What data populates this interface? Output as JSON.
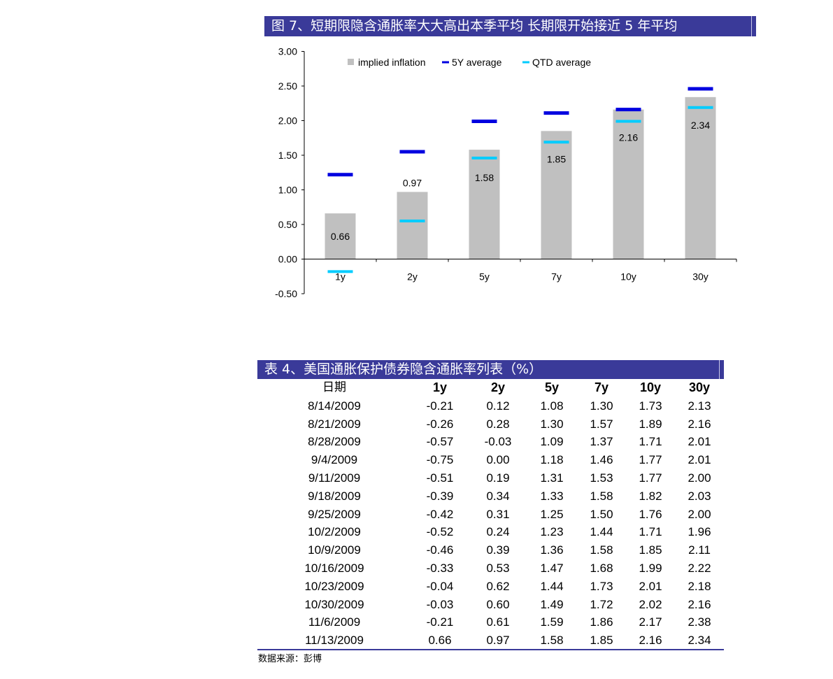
{
  "figure": {
    "title": "图 7、短期限隐含通胀率大大高出本季平均 长期限开始接近 5 年平均"
  },
  "chart_data": {
    "type": "bar",
    "categories": [
      "1y",
      "2y",
      "5y",
      "7y",
      "10y",
      "30y"
    ],
    "series": [
      {
        "name": "implied inflation",
        "kind": "bar",
        "values": [
          0.66,
          0.97,
          1.58,
          1.85,
          2.16,
          2.34
        ],
        "color": "#c0c0c0"
      },
      {
        "name": "5Y average",
        "kind": "marker",
        "values": [
          1.22,
          1.55,
          1.99,
          2.11,
          2.16,
          2.46
        ],
        "color": "#0000e0"
      },
      {
        "name": "QTD average",
        "kind": "marker",
        "values": [
          -0.18,
          0.55,
          1.46,
          1.69,
          1.99,
          2.19
        ],
        "color": "#00ccff"
      }
    ],
    "data_labels": [
      "0.66",
      "0.97",
      "1.58",
      "1.85",
      "2.16",
      "2.34"
    ],
    "yticks": [
      "3.00",
      "2.50",
      "2.00",
      "1.50",
      "1.00",
      "0.50",
      "0.00",
      "-0.50"
    ],
    "ylim": [
      -0.5,
      3.0
    ],
    "xlabel": "",
    "ylabel": "",
    "legend_position": "top",
    "grid": false
  },
  "table": {
    "title": "表 4、美国通胀保护债券隐含通胀率列表（%）",
    "headers": [
      "日期",
      "1y",
      "2y",
      "5y",
      "7y",
      "10y",
      "30y"
    ],
    "rows": [
      [
        "8/14/2009",
        "-0.21",
        "0.12",
        "1.08",
        "1.30",
        "1.73",
        "2.13"
      ],
      [
        "8/21/2009",
        "-0.26",
        "0.28",
        "1.30",
        "1.57",
        "1.89",
        "2.16"
      ],
      [
        "8/28/2009",
        "-0.57",
        "-0.03",
        "1.09",
        "1.37",
        "1.71",
        "2.01"
      ],
      [
        "9/4/2009",
        "-0.75",
        "0.00",
        "1.18",
        "1.46",
        "1.77",
        "2.01"
      ],
      [
        "9/11/2009",
        "-0.51",
        "0.19",
        "1.31",
        "1.53",
        "1.77",
        "2.00"
      ],
      [
        "9/18/2009",
        "-0.39",
        "0.34",
        "1.33",
        "1.58",
        "1.82",
        "2.03"
      ],
      [
        "9/25/2009",
        "-0.42",
        "0.31",
        "1.25",
        "1.50",
        "1.76",
        "2.00"
      ],
      [
        "10/2/2009",
        "-0.52",
        "0.24",
        "1.23",
        "1.44",
        "1.71",
        "1.96"
      ],
      [
        "10/9/2009",
        "-0.46",
        "0.39",
        "1.36",
        "1.58",
        "1.85",
        "2.11"
      ],
      [
        "10/16/2009",
        "-0.33",
        "0.53",
        "1.47",
        "1.68",
        "1.99",
        "2.22"
      ],
      [
        "10/23/2009",
        "-0.04",
        "0.62",
        "1.44",
        "1.73",
        "2.01",
        "2.18"
      ],
      [
        "10/30/2009",
        "-0.03",
        "0.60",
        "1.49",
        "1.72",
        "2.02",
        "2.16"
      ],
      [
        "11/6/2009",
        "-0.21",
        "0.61",
        "1.59",
        "1.86",
        "2.17",
        "2.38"
      ],
      [
        "11/13/2009",
        "0.66",
        "0.97",
        "1.58",
        "1.85",
        "2.16",
        "2.34"
      ]
    ]
  },
  "source": "数据来源：彭博"
}
